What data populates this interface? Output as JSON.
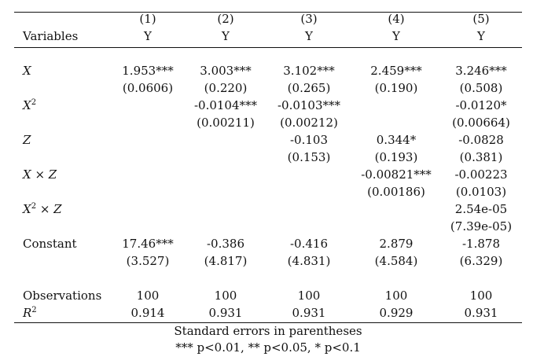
{
  "table": {
    "header": {
      "col_numbers": [
        "(1)",
        "(2)",
        "(3)",
        "(4)",
        "(5)"
      ],
      "dep_var_label": "Variables",
      "dep_vars": [
        "Y",
        "Y",
        "Y",
        "Y",
        "Y"
      ]
    },
    "row_labels": {
      "x": "X",
      "x2_base": "X",
      "x2_exp": "2",
      "z": "Z",
      "xz_a": "X",
      "xz_op": " × ",
      "xz_b": "Z",
      "x2z_base": "X",
      "x2z_exp": "2",
      "x2z_op": " × ",
      "x2z_b": "Z",
      "constant": "Constant",
      "observations": "Observations",
      "r2_base": "R",
      "r2_exp": "2"
    },
    "rows": {
      "x": {
        "coef": [
          "1.953***",
          "3.003***",
          "3.102***",
          "2.459***",
          "3.246***"
        ],
        "se": [
          "(0.0606)",
          "(0.220)",
          "(0.265)",
          "(0.190)",
          "(0.508)"
        ]
      },
      "x2": {
        "coef": [
          "",
          "-0.0104***",
          "-0.0103***",
          "",
          "-0.0120*"
        ],
        "se": [
          "",
          "(0.00211)",
          "(0.00212)",
          "",
          "(0.00664)"
        ]
      },
      "z": {
        "coef": [
          "",
          "",
          "-0.103",
          "0.344*",
          "-0.0828"
        ],
        "se": [
          "",
          "",
          "(0.153)",
          "(0.193)",
          "(0.381)"
        ]
      },
      "xz": {
        "coef": [
          "",
          "",
          "",
          "-0.00821***",
          "-0.00223"
        ],
        "se": [
          "",
          "",
          "",
          "(0.00186)",
          "(0.0103)"
        ]
      },
      "x2z": {
        "coef": [
          "",
          "",
          "",
          "",
          "2.54e-05"
        ],
        "se": [
          "",
          "",
          "",
          "",
          "(7.39e-05)"
        ]
      },
      "constant": {
        "coef": [
          "17.46***",
          "-0.386",
          "-0.416",
          "2.879",
          "-1.878"
        ],
        "se": [
          "(3.527)",
          "(4.817)",
          "(4.831)",
          "(4.584)",
          "(6.329)"
        ]
      },
      "observations": [
        "100",
        "100",
        "100",
        "100",
        "100"
      ],
      "r2": [
        "0.914",
        "0.931",
        "0.931",
        "0.929",
        "0.931"
      ]
    },
    "notes": {
      "line1": "Standard errors in parentheses",
      "line2": "*** p<0.01, ** p<0.05, * p<0.1"
    }
  }
}
